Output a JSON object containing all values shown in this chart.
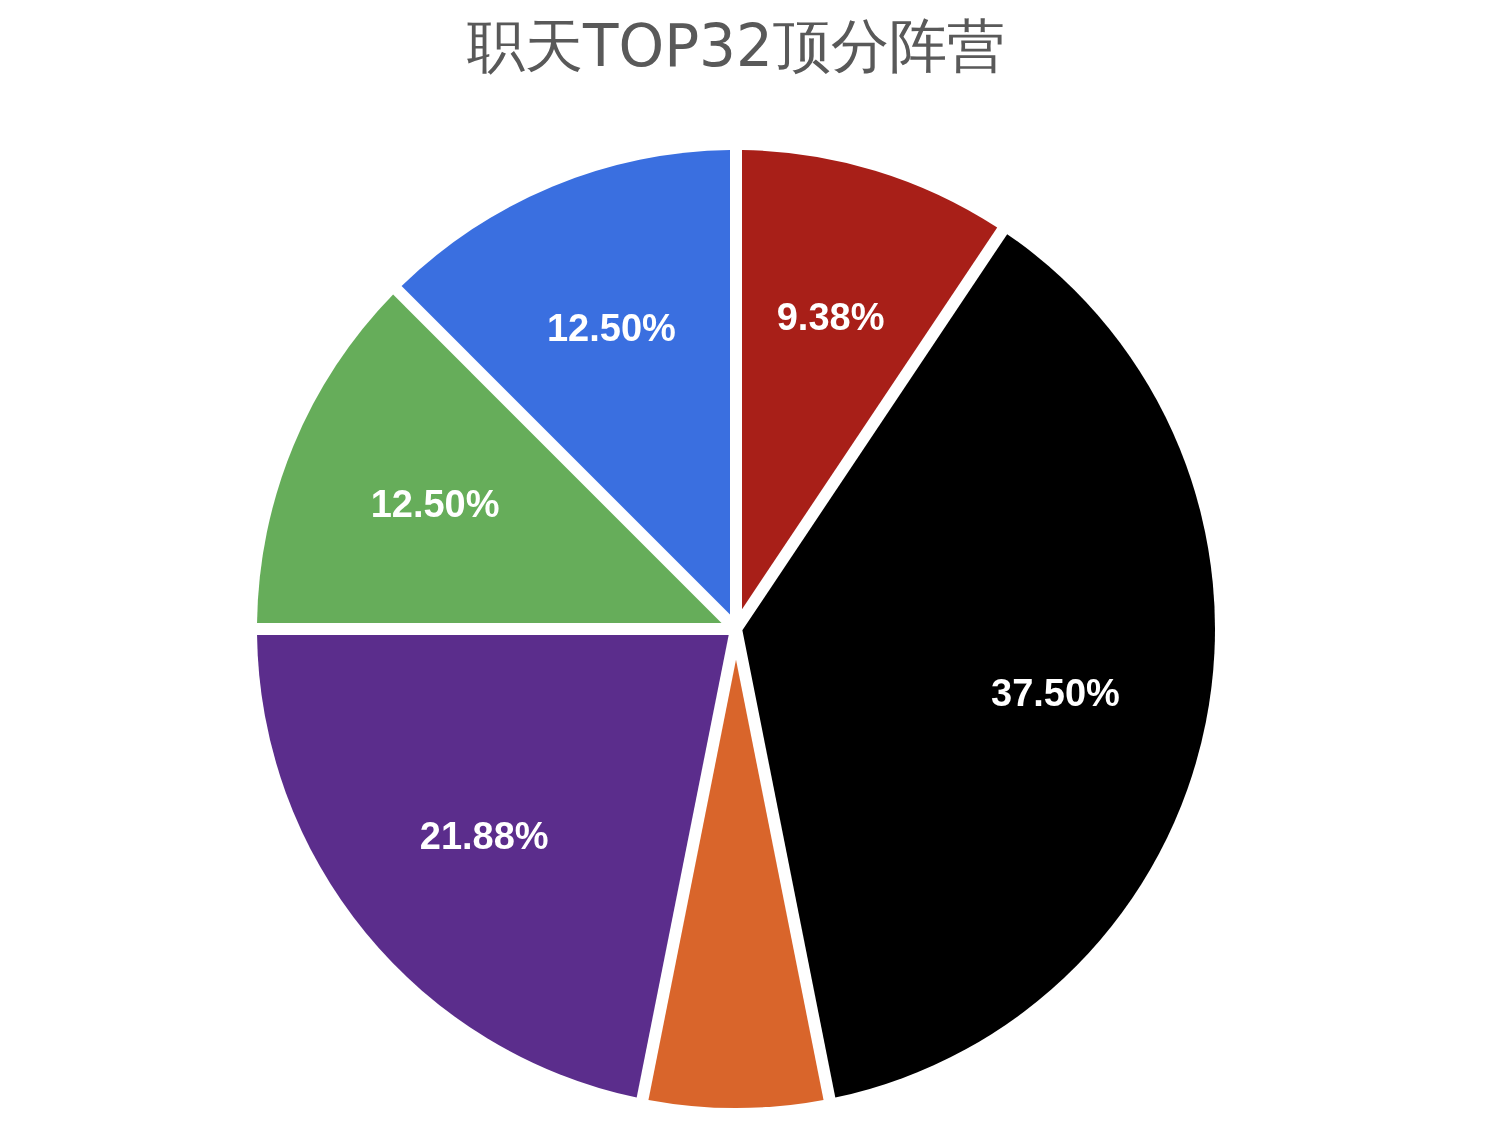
{
  "chart_data": {
    "type": "pie",
    "title": "职天TOP32顶分阵营",
    "categories": [
      null,
      null,
      null,
      null,
      null,
      null
    ],
    "values": [
      9.38,
      37.5,
      6.25,
      21.88,
      12.5,
      12.5
    ],
    "colors": [
      "#a81f18",
      "#000000",
      "#d9652b",
      "#5b2d8c",
      "#66ad5a",
      "#3a6fe0"
    ],
    "value_labels": [
      "9.38%",
      "37.50%",
      null,
      "21.88%",
      "12.50%",
      "12.50%"
    ]
  }
}
